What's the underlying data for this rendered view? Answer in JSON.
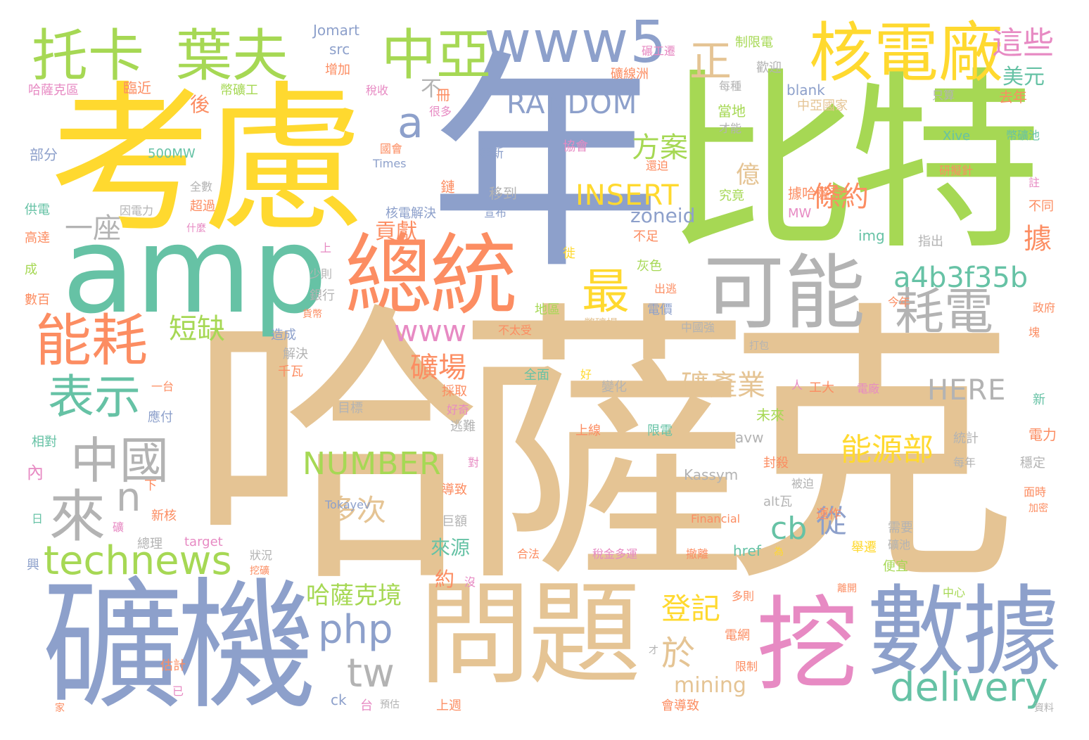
{
  "colors": {
    "tan": "#e5c494",
    "yellow": "#ffd92f",
    "green": "#a6d854",
    "blue": "#8da0cb",
    "teal": "#66c2a5",
    "orange": "#fc8d62",
    "pink": "#e78ac3",
    "gray": "#b3b3b3"
  },
  "words": {
    "hasake": "哈薩克",
    "kaolv": "考慮",
    "nian": "年",
    "bite": "比特",
    "amp": "amp",
    "kuangji": "礦機",
    "wenti": "問題",
    "wa": "挖",
    "shuju": "數據",
    "zongtong": "總統",
    "keneng": "可能",
    "hedianchang": "核電廠",
    "tuoka": "托卡",
    "yefu": "葉夫",
    "zhongya": "中亞",
    "www5": "www5",
    "nenghao": "能耗",
    "haodian": "耗電",
    "zhongguo": "中國",
    "lai": "來",
    "technews": "technews",
    "delivery": "delivery",
    "php": "php",
    "tw": "tw",
    "biaoshi": "表示",
    "zui": "最",
    "a4b3f35b": "a4b3f35b",
    "random": "RANDOM",
    "insert": "INSERT",
    "number": "NUMBER",
    "here": "HERE",
    "www": "www",
    "a": "a",
    "n": "n",
    "cb": "cb",
    "zheng": "正",
    "zhexie": "這些",
    "meiyuan": "美元",
    "fangan": "方案",
    "tiaoyue": "條約",
    "ju": "據",
    "yi": "億",
    "duanque": "短缺",
    "kuangchang": "礦場",
    "kuangchanye": "礦產業",
    "nengyuanbu": "能源部",
    "duoci": "多次",
    "dengji": "登記",
    "yu": "於",
    "mining": "mining",
    "hasakejing": "哈薩克境",
    "gongxian": "貢獻",
    "yizuo": "一座",
    "cong": "從",
    "bu": "不",
    "hou": "後",
    "laiyuan": "來源",
    "yue": "約",
    "zoneid": "zoneid",
    "jomart": "Jomart",
    "src": "src",
    "zengjia": "增加",
    "bikuanggong": "幣礦工",
    "hasakequ": "哈薩克區",
    "linjin": "臨近",
    "shuishou": "稅收",
    "ce": "冊",
    "henduo": "很多",
    "bufen": "部分",
    "mw500": "500MW",
    "guohui": "國會",
    "jianxin": "建新",
    "xiehui": "協會",
    "times": "Times",
    "quanshu": "全數",
    "chaoguo": "超過",
    "gongdian": "供電",
    "yindianli": "因電力",
    "gaoda": "高達",
    "shenme": "什麼",
    "hedianjiejue": "核電解決",
    "xuanbu": "宣布",
    "yidaodao": "移到",
    "lian": "鏈",
    "bianhuan": "碾工遷",
    "zhixiandian": "制限電",
    "kuangxianzhou": "礦線洲",
    "huanying": "歡迎",
    "meizhong": "每種",
    "blank": "blank",
    "dangdi": "當地",
    "zhongyaguojia": "中亞國家",
    "caineng": "才能",
    "zhisuan": "只算",
    "qunian": "去年",
    "xive": "Xive",
    "bikuangchi": "幣礦池",
    "yanni": "研擬針",
    "zhu": "註",
    "butong": "不同",
    "juhasake": "據哈薩克",
    "jiujing": "究竟",
    "mw": "MW",
    "img": "img",
    "zhichu": "指出",
    "buzu": "不足",
    "huanpo": "還迫",
    "shang": "上",
    "cheng": "成",
    "shubai": "數百",
    "xu": "徙",
    "shaoze": "少則",
    "yinhang": "銀行",
    "huobi": "貨幣",
    "huise": "灰色",
    "chutao": "出逃",
    "diqu": "地區",
    "dianjia": "電價",
    "bikuangchang": "幣礦場",
    "zhongguoqiang": "中國強",
    "jinnian": "今年",
    "zhengfu": "政府",
    "kuai": "塊",
    "zaocheng": "造成",
    "jiejue": "解決",
    "buxaishou": "不太受",
    "dabao": "打包",
    "qianwa": "千瓦",
    "yitai": "一台",
    "caiqu": "採取",
    "haoqi": "好奇",
    "quanmian": "全面",
    "hao": "好",
    "bianhua": "變化",
    "ren": "人",
    "gongda": "工大",
    "dianchang": "電廠",
    "xin": "新",
    "yingfu": "應付",
    "mubiao": "目標",
    "taonan": "逃難",
    "shangxian": "上線",
    "xiandian": "限電",
    "weilai": "未來",
    "tongji": "統計",
    "dianli": "電力",
    "xiangdui": "相對",
    "avw": "avw",
    "dui": "對",
    "meinian": "每年",
    "wending": "穩定",
    "nei": "內",
    "xia": "下",
    "kassym": "Kassym",
    "fengsha": "封殺",
    "beipo": "被迫",
    "daozhi": "導致",
    "tokayev": "Tokayev",
    "altwa": "alt瓦",
    "miansh": "面時",
    "jiami": "加密",
    "ri": "日",
    "xinhe": "新核",
    "kuang": "礦",
    "jue": "巨額",
    "financial": "Financial",
    "yunzuo": "運作",
    "xuyao": "需要",
    "kuangchi": "礦池",
    "zongli": "總理",
    "target": "target",
    "zhuangkuang": "狀況",
    "xing": "興",
    "wakuang": "挖礦",
    "hefa": "合法",
    "shuijin": "稅金多運",
    "chelu": "撤離",
    "href": "href",
    "wei": "為",
    "juqian": "舉遷",
    "pianyi": "便宜",
    "mei": "沒",
    "duoze": "多則",
    "likai": "離開",
    "zhongxin": "中心",
    "dianwang": "電網",
    "cai": "才",
    "guji": "估計",
    "xianzhi": "限制",
    "yi2": "已",
    "jia": "家",
    "ck": "ck",
    "tai": "台",
    "yugu": "預估",
    "shangzhou": "上週",
    "huidaozhi": "會導致",
    "ziliao": "資料"
  }
}
